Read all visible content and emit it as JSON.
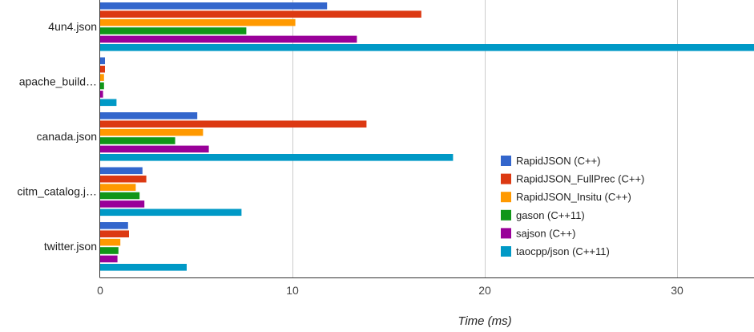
{
  "chart_data": {
    "type": "bar",
    "orientation": "horizontal",
    "title": "",
    "xlabel": "Time (ms)",
    "ylabel": "",
    "xlim": [
      0,
      34
    ],
    "xticks": [
      0,
      10,
      20,
      30
    ],
    "grid": true,
    "legend_position": "right",
    "categories": [
      "4un4.json",
      "apache_build…",
      "canada.json",
      "citm_catalog.j…",
      "twitter.json"
    ],
    "series": [
      {
        "name": "RapidJSON (C++)",
        "color": "#3366cc",
        "values": [
          11.8,
          0.25,
          5.05,
          2.2,
          1.45
        ]
      },
      {
        "name": "RapidJSON_FullPrec (C++)",
        "color": "#dc3912",
        "values": [
          16.7,
          0.25,
          13.85,
          2.4,
          1.5
        ]
      },
      {
        "name": "RapidJSON_Insitu (C++)",
        "color": "#ff9900",
        "values": [
          10.15,
          0.2,
          5.35,
          1.85,
          1.05
        ]
      },
      {
        "name": "gason (C++11)",
        "color": "#109618",
        "values": [
          7.6,
          0.2,
          3.9,
          2.05,
          0.95
        ]
      },
      {
        "name": "sajson (C++)",
        "color": "#990099",
        "values": [
          13.35,
          0.15,
          5.65,
          2.3,
          0.9
        ]
      },
      {
        "name": "taocpp/json (C++11)",
        "color": "#0099c6",
        "values": [
          34.0,
          0.85,
          18.35,
          7.35,
          4.5
        ]
      }
    ]
  }
}
